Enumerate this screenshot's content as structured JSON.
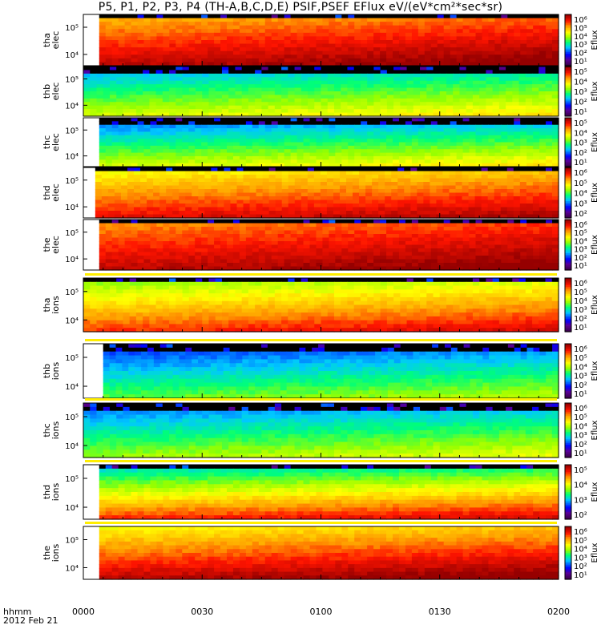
{
  "title": "P5, P1, P2, P3, P4 (TH-A,B,C,D,E) PSIF,PSEF EFlux eV/(eV*cm²*sec*sr)",
  "chart_data": {
    "type": "heatmap",
    "title": "P5, P1, P2, P3, P4 (TH-A,B,C,D,E) PSIF,PSEF EFlux eV/(eV*cm²*sec*sr)",
    "xaxis": {
      "label_line1": "hhmm",
      "label_line2": "2012 Feb 21",
      "ticks": [
        "0000",
        "0030",
        "0100",
        "0130",
        "0200"
      ],
      "range": [
        "00:00",
        "02:00"
      ]
    },
    "colormap": "rainbow (purple-blue-cyan-green-yellow-orange-red-darkred)",
    "colorbar_label": "Eflux",
    "yaxis_scale": "log",
    "panels": [
      {
        "probe": "tha",
        "species": "elec",
        "ytick_hi": "10⁵",
        "ytick_lo": "10⁴",
        "levels": [
          0.75,
          0.95
        ],
        "black_rows": 1,
        "data_start": "00:04",
        "cbar_ticks": [
          "10⁶",
          "10⁵",
          "10⁴",
          "10³",
          "10²",
          "10¹"
        ]
      },
      {
        "probe": "thb",
        "species": "elec",
        "ytick_hi": "10⁵",
        "ytick_lo": "10⁴",
        "levels": [
          0.35,
          0.6
        ],
        "black_rows": 2,
        "data_start": "00:00",
        "cbar_ticks": [
          "10⁵",
          "10⁴",
          "10³",
          "10²",
          "10¹"
        ]
      },
      {
        "probe": "thc",
        "species": "elec",
        "ytick_hi": "10⁵",
        "ytick_lo": "10⁴",
        "levels": [
          0.3,
          0.6
        ],
        "black_rows": 2,
        "data_start": "00:04",
        "cbar_ticks": [
          "10⁵",
          "10⁴",
          "10³",
          "10²",
          "10¹"
        ]
      },
      {
        "probe": "thd",
        "species": "elec",
        "ytick_hi": "10⁵",
        "ytick_lo": "10⁴",
        "levels": [
          0.65,
          0.9
        ],
        "black_rows": 1,
        "data_start": "00:03",
        "cbar_ticks": [
          "10⁶",
          "10⁵",
          "10⁴",
          "10³",
          "10²"
        ]
      },
      {
        "probe": "the",
        "species": "elec",
        "ytick_hi": "10⁵",
        "ytick_lo": "10⁴",
        "levels": [
          0.78,
          0.95
        ],
        "black_rows": 1,
        "data_start": "00:04",
        "cbar_ticks": [
          "10⁶",
          "10⁵",
          "10⁴",
          "10³",
          "10²",
          "10¹"
        ]
      },
      {
        "probe": "tha",
        "species": "ions",
        "ytick_hi": "10⁵",
        "ytick_lo": "10⁴",
        "levels": [
          0.55,
          0.85
        ],
        "black_rows": 1,
        "data_start": "00:00",
        "cbar_ticks": [
          "10⁶",
          "10⁵",
          "10⁴",
          "10³",
          "10²",
          "10¹"
        ]
      },
      {
        "probe": "thb",
        "species": "ions",
        "ytick_hi": "10⁵",
        "ytick_lo": "10⁴",
        "levels": [
          0.25,
          0.5
        ],
        "black_rows": 2,
        "data_start": "00:05",
        "cbar_ticks": [
          "10⁶",
          "10⁵",
          "10⁴",
          "10³",
          "10²",
          "10¹"
        ]
      },
      {
        "probe": "thc",
        "species": "ions",
        "ytick_hi": "10⁵",
        "ytick_lo": "10⁴",
        "levels": [
          0.3,
          0.55
        ],
        "black_rows": 2,
        "data_start": "00:00",
        "cbar_ticks": [
          "10⁶",
          "10⁵",
          "10⁴",
          "10³",
          "10²",
          "10¹"
        ]
      },
      {
        "probe": "thd",
        "species": "ions",
        "ytick_hi": "10⁵",
        "ytick_lo": "10⁴",
        "levels": [
          0.4,
          0.85
        ],
        "black_rows": 1,
        "data_start": "00:04",
        "cbar_ticks": [
          "10⁵",
          "10⁴",
          "10³",
          "10²"
        ]
      },
      {
        "probe": "the",
        "species": "ions",
        "ytick_hi": "10⁵",
        "ytick_lo": "10⁴",
        "levels": [
          0.65,
          0.95
        ],
        "black_rows": 0,
        "data_start": "00:04",
        "cbar_ticks": [
          "10⁶",
          "10⁵",
          "10⁴",
          "10³",
          "10²",
          "10¹"
        ]
      }
    ]
  }
}
